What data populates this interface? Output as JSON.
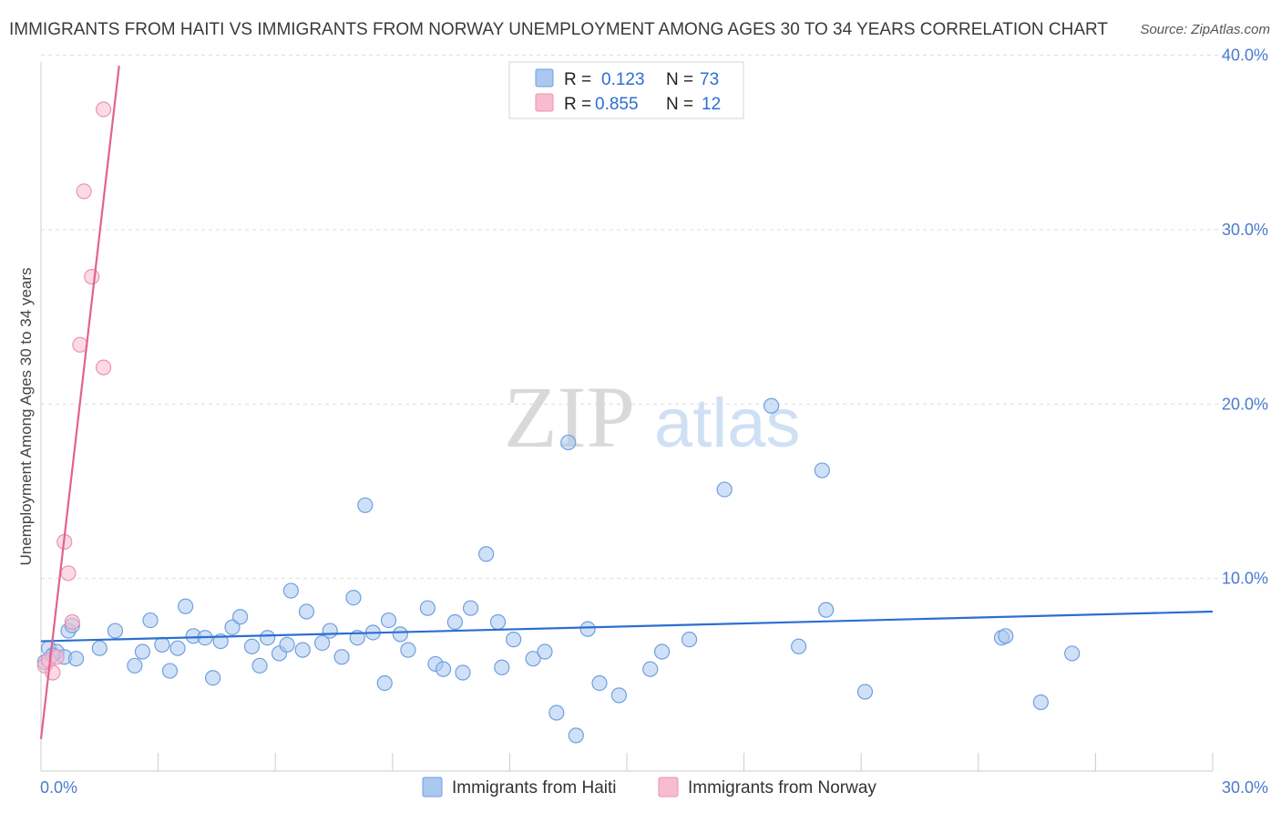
{
  "title": "IMMIGRANTS FROM HAITI VS IMMIGRANTS FROM NORWAY UNEMPLOYMENT AMONG AGES 30 TO 34 YEARS CORRELATION CHART",
  "source": "Source: ZipAtlas.com",
  "watermark": {
    "part1": "ZIP",
    "part2": "atlas"
  },
  "legend": {
    "r_label": "R =",
    "n_label": "N =",
    "rows": [
      {
        "r": "0.123",
        "n": "73"
      },
      {
        "r": "0.855",
        "n": "12"
      }
    ]
  },
  "colors": {
    "haiti_fill": "#aac8f0",
    "haiti_stroke": "#6f9fe0",
    "haiti_line": "#2b6fcf",
    "norway_fill": "#f7bccd",
    "norway_stroke": "#ec93b0",
    "norway_line": "#e2628f",
    "tick": "#4a7bd0"
  },
  "chart_data": {
    "type": "scatter",
    "title": "IMMIGRANTS FROM HAITI VS IMMIGRANTS FROM NORWAY UNEMPLOYMENT AMONG AGES 30 TO 34 YEARS CORRELATION CHART",
    "xlabel": "",
    "ylabel": "Unemployment Among Ages 30 to 34 years",
    "xlim": [
      0,
      30
    ],
    "ylim": [
      0,
      41
    ],
    "x_tick_labels": [
      "0.0%",
      "30.0%"
    ],
    "y_ticks": [
      10,
      20,
      30,
      40
    ],
    "y_tick_labels": [
      "10.0%",
      "20.0%",
      "30.0%",
      "40.0%"
    ],
    "grid": true,
    "legend_position": "top-center",
    "series": [
      {
        "name": "Immigrants from Haiti",
        "r": 0.123,
        "n": 73,
        "trend": {
          "x": [
            0,
            30
          ],
          "y": [
            6.4,
            8.1
          ]
        },
        "points": [
          [
            0.2,
            6.0
          ],
          [
            0.4,
            5.8
          ],
          [
            0.6,
            5.5
          ],
          [
            0.7,
            7.0
          ],
          [
            0.8,
            7.3
          ],
          [
            1.5,
            6.0
          ],
          [
            1.9,
            7.0
          ],
          [
            2.4,
            5.0
          ],
          [
            2.6,
            5.8
          ],
          [
            2.8,
            7.6
          ],
          [
            3.1,
            6.2
          ],
          [
            3.3,
            4.7
          ],
          [
            3.5,
            6.0
          ],
          [
            3.7,
            8.4
          ],
          [
            3.9,
            6.7
          ],
          [
            4.2,
            6.6
          ],
          [
            4.4,
            4.3
          ],
          [
            4.6,
            6.4
          ],
          [
            4.9,
            7.2
          ],
          [
            5.1,
            7.8
          ],
          [
            5.4,
            6.1
          ],
          [
            5.6,
            5.0
          ],
          [
            5.8,
            6.6
          ],
          [
            6.1,
            5.7
          ],
          [
            6.3,
            6.2
          ],
          [
            6.4,
            9.3
          ],
          [
            6.7,
            5.9
          ],
          [
            6.8,
            8.1
          ],
          [
            7.2,
            6.3
          ],
          [
            7.4,
            7.0
          ],
          [
            7.7,
            5.5
          ],
          [
            8.0,
            8.9
          ],
          [
            8.1,
            6.6
          ],
          [
            8.3,
            14.2
          ],
          [
            8.5,
            6.9
          ],
          [
            8.8,
            4.0
          ],
          [
            8.9,
            7.6
          ],
          [
            9.2,
            6.8
          ],
          [
            9.4,
            5.9
          ],
          [
            9.9,
            8.3
          ],
          [
            10.1,
            5.1
          ],
          [
            10.3,
            4.8
          ],
          [
            10.6,
            7.5
          ],
          [
            10.8,
            4.6
          ],
          [
            11.0,
            8.3
          ],
          [
            11.4,
            11.4
          ],
          [
            11.7,
            7.5
          ],
          [
            11.8,
            4.9
          ],
          [
            12.1,
            6.5
          ],
          [
            12.6,
            5.4
          ],
          [
            12.9,
            5.8
          ],
          [
            13.2,
            2.3
          ],
          [
            13.5,
            17.8
          ],
          [
            13.7,
            1.0
          ],
          [
            14.0,
            7.1
          ],
          [
            14.3,
            4.0
          ],
          [
            14.8,
            3.3
          ],
          [
            15.6,
            4.8
          ],
          [
            15.9,
            5.8
          ],
          [
            16.6,
            6.5
          ],
          [
            17.5,
            15.1
          ],
          [
            18.7,
            19.9
          ],
          [
            19.4,
            6.1
          ],
          [
            20.0,
            16.2
          ],
          [
            20.1,
            8.2
          ],
          [
            21.1,
            3.5
          ],
          [
            24.6,
            6.6
          ],
          [
            24.7,
            6.7
          ],
          [
            25.6,
            2.9
          ],
          [
            26.4,
            5.7
          ],
          [
            0.1,
            5.2
          ],
          [
            0.3,
            5.6
          ],
          [
            0.9,
            5.4
          ]
        ]
      },
      {
        "name": "Immigrants from Norway",
        "r": 0.855,
        "n": 12,
        "trend": {
          "x": [
            0,
            2.0
          ],
          "y": [
            0.8,
            39.4
          ]
        },
        "points": [
          [
            0.1,
            5.0
          ],
          [
            0.2,
            5.3
          ],
          [
            0.3,
            4.6
          ],
          [
            0.4,
            5.5
          ],
          [
            0.6,
            12.1
          ],
          [
            0.7,
            10.3
          ],
          [
            0.8,
            7.5
          ],
          [
            1.0,
            23.4
          ],
          [
            1.1,
            32.2
          ],
          [
            1.3,
            27.3
          ],
          [
            1.6,
            22.1
          ],
          [
            1.6,
            36.9
          ]
        ]
      }
    ]
  }
}
